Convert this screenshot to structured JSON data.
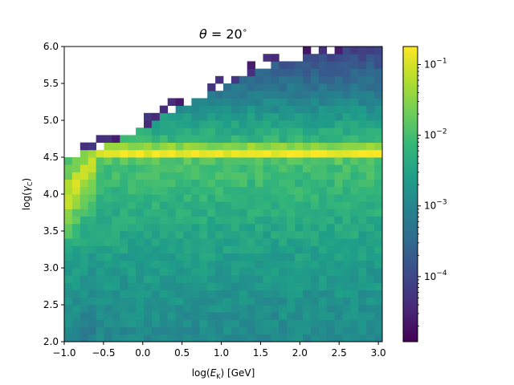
{
  "chart_data": {
    "type": "heatmap",
    "title": {
      "symbol": "θ",
      "equals": " = 20",
      "degree": "∘"
    },
    "xlabel": {
      "pre": "log(",
      "E": "E",
      "sub": "K",
      "post": ") [GeV]"
    },
    "ylabel": {
      "pre": "log(",
      "gamma": "γ",
      "sub": "C",
      "post": ")"
    },
    "xlim": [
      -1.0,
      3.05
    ],
    "ylim": [
      2.0,
      6.0
    ],
    "x_ticks": [
      "−1.0",
      "−0.5",
      "0.0",
      "0.5",
      "1.0",
      "1.5",
      "2.0",
      "2.5",
      "3.0"
    ],
    "x_tick_values": [
      -1.0,
      -0.5,
      0.0,
      0.5,
      1.0,
      1.5,
      2.0,
      2.5,
      3.0
    ],
    "y_ticks": [
      "2.0",
      "2.5",
      "3.0",
      "3.5",
      "4.0",
      "4.5",
      "5.0",
      "5.5",
      "6.0"
    ],
    "y_tick_values": [
      2.0,
      2.5,
      3.0,
      3.5,
      4.0,
      4.5,
      5.0,
      5.5,
      6.0
    ],
    "n_x_bins": 40,
    "n_y_bins": 40,
    "colormap": "viridis",
    "colorbar": {
      "scale": "log",
      "range": [
        1.2e-05,
        0.18
      ],
      "ticks": [
        {
          "value": 0.1,
          "base": "10",
          "exp": "−1"
        },
        {
          "value": 0.01,
          "base": "10",
          "exp": "−2"
        },
        {
          "value": 0.001,
          "base": "10",
          "exp": "−3"
        },
        {
          "value": 0.0001,
          "base": "10",
          "exp": "−4"
        }
      ]
    },
    "features": {
      "peak_band_log_gamma": 4.57,
      "peak_value": 0.15,
      "upper_edge_log_gamma": [
        [
          -1.0,
          4.5
        ],
        [
          -0.5,
          4.7
        ],
        [
          0.0,
          4.95
        ],
        [
          0.5,
          5.25
        ],
        [
          1.0,
          5.5
        ],
        [
          1.5,
          5.75
        ],
        [
          2.0,
          5.9
        ],
        [
          2.5,
          6.0
        ],
        [
          3.0,
          6.0
        ]
      ]
    }
  },
  "colors": {
    "viridis": [
      "#440154",
      "#482878",
      "#3e4989",
      "#31688e",
      "#26828e",
      "#1f9e89",
      "#35b779",
      "#6ece58",
      "#b5de2b",
      "#fde725"
    ]
  }
}
